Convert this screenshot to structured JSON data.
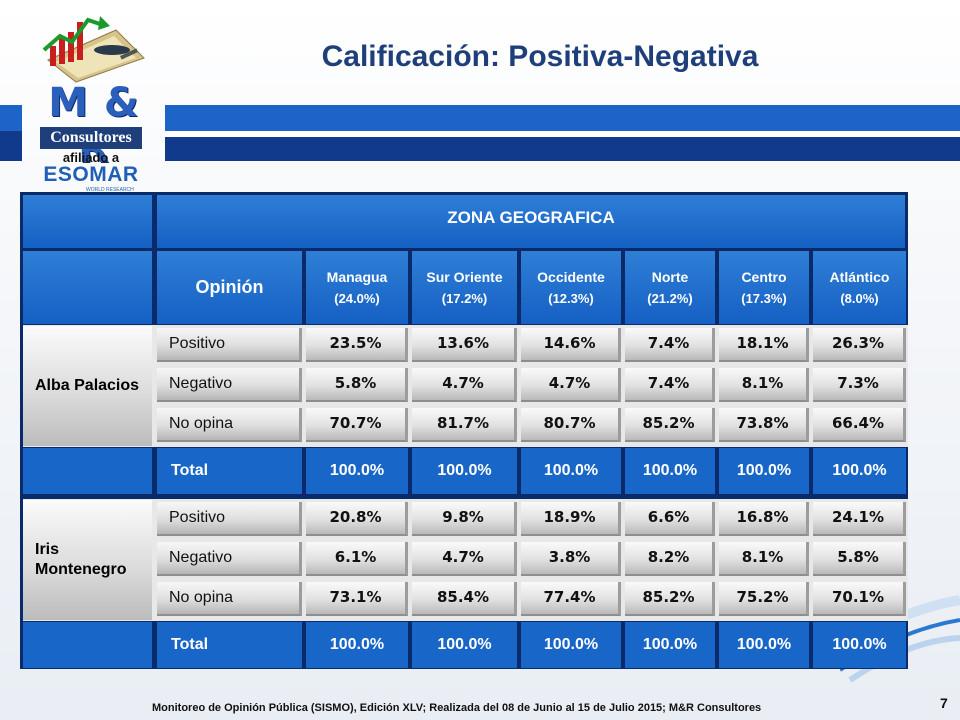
{
  "title": "Calificación: Positiva-Negativa",
  "logo": {
    "brand": "M & R",
    "name": "Consultores",
    "affiliated": "afiliado a",
    "org": "ESOMAR",
    "org_sub": "WORLD RESEARCH"
  },
  "table": {
    "zone_header": "ZONA GEOGRAFICA",
    "opinion_header": "Opinión",
    "zones": [
      {
        "name": "Managua",
        "pct": "(24.0%)"
      },
      {
        "name": "Sur Oriente",
        "pct": "(17.2%)"
      },
      {
        "name": "Occidente",
        "pct": "(12.3%)"
      },
      {
        "name": "Norte",
        "pct": "(21.2%)"
      },
      {
        "name": "Centro",
        "pct": "(17.3%)"
      },
      {
        "name": "Atlántico",
        "pct": "(8.0%)"
      }
    ],
    "candidates": [
      {
        "name": "Alba Palacios",
        "rows": [
          {
            "label": "Positivo",
            "values": [
              "23.5%",
              "13.6%",
              "14.6%",
              "7.4%",
              "18.1%",
              "26.3%"
            ]
          },
          {
            "label": "Negativo",
            "values": [
              "5.8%",
              "4.7%",
              "4.7%",
              "7.4%",
              "8.1%",
              "7.3%"
            ]
          },
          {
            "label": "No opina",
            "values": [
              "70.7%",
              "81.7%",
              "80.7%",
              "85.2%",
              "73.8%",
              "66.4%"
            ]
          }
        ],
        "total_label": "Total",
        "totals": [
          "100.0%",
          "100.0%",
          "100.0%",
          "100.0%",
          "100.0%",
          "100.0%"
        ]
      },
      {
        "name": "Iris Montenegro",
        "rows": [
          {
            "label": "Positivo",
            "values": [
              "20.8%",
              "9.8%",
              "18.9%",
              "6.6%",
              "16.8%",
              "24.1%"
            ]
          },
          {
            "label": "Negativo",
            "values": [
              "6.1%",
              "4.7%",
              "3.8%",
              "8.2%",
              "8.1%",
              "5.8%"
            ]
          },
          {
            "label": "No opina",
            "values": [
              "73.1%",
              "85.4%",
              "77.4%",
              "85.2%",
              "75.2%",
              "70.1%"
            ]
          }
        ],
        "total_label": "Total",
        "totals": [
          "100.0%",
          "100.0%",
          "100.0%",
          "100.0%",
          "100.0%",
          "100.0%"
        ]
      }
    ]
  },
  "footer": "Monitoreo de Opinión Pública (SISMO), Edición XLV; Realizada del 08 de Junio al 15 de Julio 2015; M&R Consultores",
  "page_number": "7",
  "colors": {
    "title": "#1f3f7a",
    "header_blue": "#1866c8",
    "band_dark": "#123a8c"
  }
}
